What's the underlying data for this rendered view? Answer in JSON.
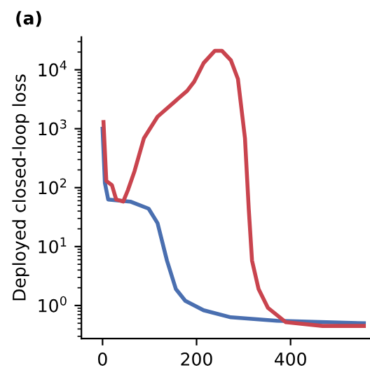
{
  "chart_data": {
    "type": "line",
    "ylabel": "Deployed closed-loop loss",
    "annotations": [
      "(a)"
    ],
    "log": "y",
    "grid": false,
    "xlim": [
      -45,
      569
    ],
    "ylim": [
      0.275,
      36000
    ],
    "xticks": [
      0,
      200,
      400
    ],
    "yticks": [
      {
        "value": 1,
        "label": "10$^{0}$"
      },
      {
        "value": 10,
        "label": "10$^{1}$"
      },
      {
        "value": 100,
        "label": "10$^{2}$"
      },
      {
        "value": 1000,
        "label": "10$^{3}$"
      },
      {
        "value": 10000,
        "label": "10$^{4}$"
      }
    ],
    "series": [
      {
        "color": "#4a6fb0",
        "x": [
          0,
          5,
          12,
          59,
          98,
          117,
          137,
          156,
          176,
          215,
          273,
          371,
          556
        ],
        "values": [
          1000,
          120,
          63,
          58,
          44,
          25,
          5.8,
          1.9,
          1.2,
          0.83,
          0.63,
          0.55,
          0.5
        ]
      },
      {
        "color": "#c9444e",
        "x": [
          2,
          8,
          20,
          29,
          44,
          54,
          68,
          88,
          117,
          156,
          180,
          195,
          215,
          239,
          254,
          273,
          288,
          303,
          311,
          318,
          332,
          352,
          390,
          468,
          556
        ],
        "values": [
          1300,
          130,
          110,
          63,
          58,
          91,
          190,
          690,
          1600,
          3000,
          4400,
          6300,
          13000,
          21000,
          21000,
          14500,
          7000,
          690,
          44,
          5.8,
          1.9,
          0.91,
          0.52,
          0.45,
          0.45
        ]
      }
    ]
  }
}
